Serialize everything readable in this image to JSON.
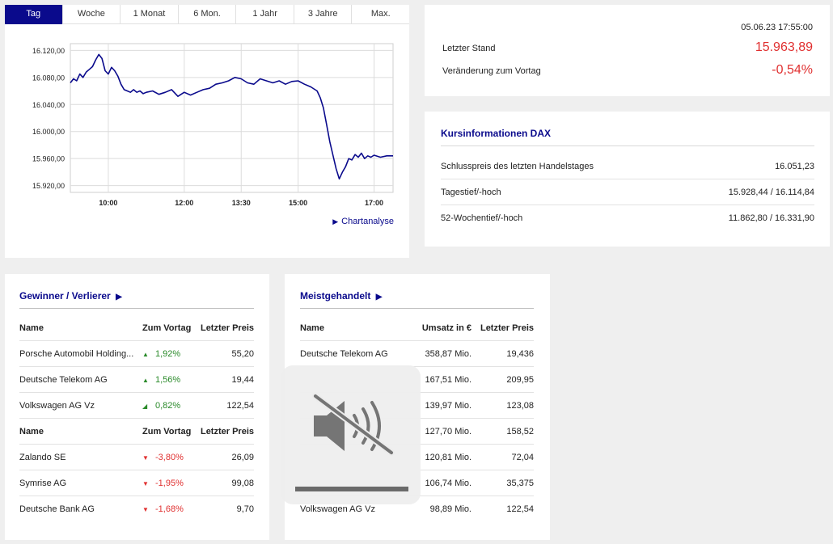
{
  "chart_panel": {
    "tabs": [
      "Tag",
      "Woche",
      "1 Monat",
      "6 Mon.",
      "1 Jahr",
      "3 Jahre",
      "Max."
    ],
    "active_tab": 0,
    "link_label": "Chartanalyse",
    "link_icon": "play-triangle-icon"
  },
  "chart_data": {
    "type": "line",
    "series": [
      {
        "color": "#0a0a8c",
        "x": [
          "09:00",
          "09:05",
          "09:10",
          "09:15",
          "09:20",
          "09:25",
          "09:30",
          "09:35",
          "09:40",
          "09:45",
          "09:50",
          "09:55",
          "10:00",
          "10:05",
          "10:10",
          "10:15",
          "10:20",
          "10:25",
          "10:30",
          "10:35",
          "10:40",
          "10:45",
          "10:50",
          "10:55",
          "11:00",
          "11:10",
          "11:20",
          "11:30",
          "11:40",
          "11:50",
          "12:00",
          "12:10",
          "12:20",
          "12:30",
          "12:40",
          "12:50",
          "13:00",
          "13:10",
          "13:20",
          "13:30",
          "13:40",
          "13:50",
          "14:00",
          "14:10",
          "14:20",
          "14:30",
          "14:40",
          "14:50",
          "15:00",
          "15:10",
          "15:20",
          "15:30",
          "15:35",
          "15:40",
          "15:45",
          "15:50",
          "15:55",
          "16:00",
          "16:05",
          "16:10",
          "16:15",
          "16:20",
          "16:25",
          "16:30",
          "16:35",
          "16:40",
          "16:45",
          "16:50",
          "16:55",
          "17:00",
          "17:10",
          "17:20",
          "17:30"
        ],
        "values": [
          16072,
          16078,
          16075,
          16085,
          16080,
          16088,
          16092,
          16096,
          16106,
          16114,
          16108,
          16090,
          16085,
          16095,
          16090,
          16082,
          16070,
          16062,
          16060,
          16058,
          16062,
          16058,
          16060,
          16056,
          16058,
          16060,
          16055,
          16058,
          16062,
          16052,
          16058,
          16054,
          16058,
          16062,
          16064,
          16070,
          16072,
          16075,
          16080,
          16078,
          16072,
          16070,
          16078,
          16075,
          16072,
          16075,
          16070,
          16074,
          16075,
          16070,
          16066,
          16060,
          16050,
          16035,
          16010,
          15985,
          15965,
          15945,
          15930,
          15940,
          15948,
          15960,
          15958,
          15966,
          15962,
          15968,
          15960,
          15964,
          15962,
          15965,
          15962,
          15964,
          15964
        ]
      }
    ],
    "ylim": [
      15910,
      16130
    ],
    "yticks": [
      "16.120,00",
      "16.080,00",
      "16.040,00",
      "16.000,00",
      "15.960,00",
      "15.920,00"
    ],
    "xticks": [
      "10:00",
      "12:00",
      "13:30",
      "15:00",
      "17:00"
    ],
    "grid": true
  },
  "quote": {
    "datetime": "05.06.23 17:55:00",
    "rows": [
      {
        "label": "Letzter Stand",
        "value": "15.963,89"
      },
      {
        "label": "Veränderung zum Vortag",
        "value": "-0,54%"
      }
    ]
  },
  "info": {
    "title": "Kursinformationen DAX",
    "rows": [
      {
        "label": "Schlusspreis des letzten Handelstages",
        "value": "16.051,23"
      },
      {
        "label": "Tagestief/-hoch",
        "value": "15.928,44 / 16.114,84"
      },
      {
        "label": "52-Wochentief/-hoch",
        "value": "11.862,80 / 16.331,90"
      }
    ]
  },
  "winners": {
    "title": "Gewinner / Verlierer",
    "title_icon": "play-triangle-icon",
    "header1": [
      "Name",
      "Zum Vortag",
      "Letzter Preis"
    ],
    "gainers": [
      {
        "name": "Porsche Automobil Holding...",
        "change": "1,92%",
        "price": "55,20",
        "icon": "triangle-up-icon"
      },
      {
        "name": "Deutsche Telekom AG",
        "change": "1,56%",
        "price": "19,44",
        "icon": "triangle-up-icon"
      },
      {
        "name": "Volkswagen AG Vz",
        "change": "0,82%",
        "price": "122,54",
        "icon": "arrow-down-right-icon"
      }
    ],
    "header2": [
      "Name",
      "Zum Vortag",
      "Letzter Preis"
    ],
    "losers": [
      {
        "name": "Zalando SE",
        "change": "-3,80%",
        "price": "26,09",
        "icon": "triangle-down-icon"
      },
      {
        "name": "Symrise AG",
        "change": "-1,95%",
        "price": "99,08",
        "icon": "triangle-down-icon"
      },
      {
        "name": "Deutsche Bank AG",
        "change": "-1,68%",
        "price": "9,70",
        "icon": "triangle-down-icon"
      }
    ],
    "colors": {
      "up": "#2a8a2a",
      "down": "#e03030"
    }
  },
  "most_traded": {
    "title": "Meistgehandelt",
    "title_icon": "play-triangle-icon",
    "header": [
      "Name",
      "Umsatz in €",
      "Letzter Preis"
    ],
    "rows": [
      {
        "name": "Deutsche Telekom AG",
        "volume": "358,87 Mio.",
        "price": "19,436"
      },
      {
        "name": "",
        "volume": "167,51 Mio.",
        "price": "209,95"
      },
      {
        "name": "",
        "volume": "139,97 Mio.",
        "price": "123,08"
      },
      {
        "name": "",
        "volume": "127,70 Mio.",
        "price": "158,52"
      },
      {
        "name": "",
        "volume": "120,81 Mio.",
        "price": "72,04"
      },
      {
        "name": "",
        "volume": "106,74 Mio.",
        "price": "35,375"
      },
      {
        "name": "Volkswagen AG Vz",
        "volume": "98,89 Mio.",
        "price": "122,54"
      }
    ]
  },
  "overlay": {
    "icon": "speaker-muted-icon"
  }
}
